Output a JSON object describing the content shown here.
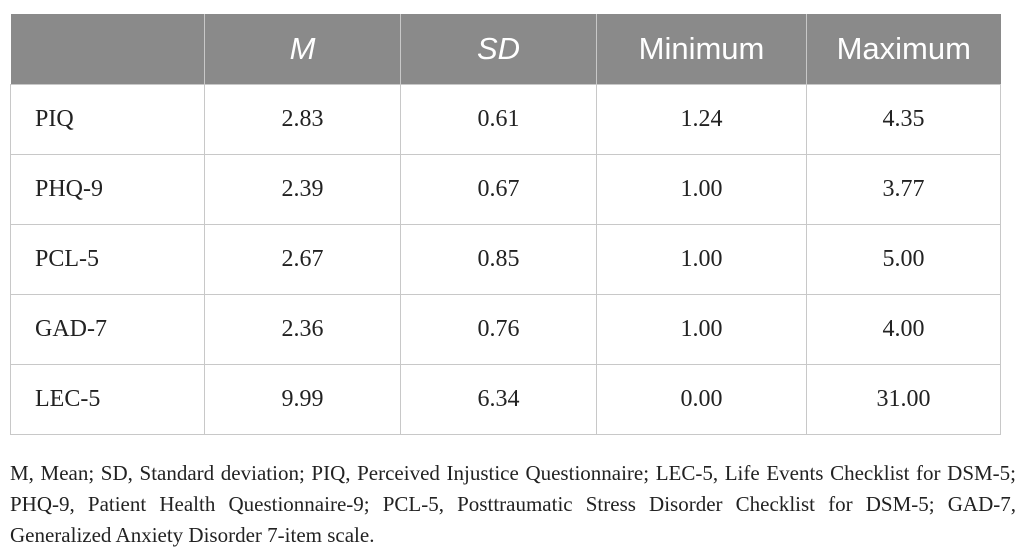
{
  "table": {
    "headers": [
      "",
      "M",
      "SD",
      "Minimum",
      "Maximum"
    ],
    "rows": [
      {
        "label": "PIQ",
        "values": [
          "2.83",
          "0.61",
          "1.24",
          "4.35"
        ]
      },
      {
        "label": "PHQ-9",
        "values": [
          "2.39",
          "0.67",
          "1.00",
          "3.77"
        ]
      },
      {
        "label": "PCL-5",
        "values": [
          "2.67",
          "0.85",
          "1.00",
          "5.00"
        ]
      },
      {
        "label": "GAD-7",
        "values": [
          "2.36",
          "0.76",
          "1.00",
          "4.00"
        ]
      },
      {
        "label": "LEC-5",
        "values": [
          "9.99",
          "6.34",
          "0.00",
          "31.00"
        ]
      }
    ]
  },
  "footnote": "M, Mean; SD, Standard deviation; PIQ, Perceived Injustice Questionnaire; LEC-5, Life Events Checklist for DSM-5; PHQ-9, Patient Health Questionnaire-9; PCL-5, Posttraumatic Stress Disorder Checklist for DSM-5; GAD-7, Generalized Anxiety Disorder 7-item scale.",
  "colors": {
    "header_bg": "#8a8a8a",
    "header_text": "#ffffff",
    "grid": "#c8c8c8",
    "text": "#222222"
  }
}
